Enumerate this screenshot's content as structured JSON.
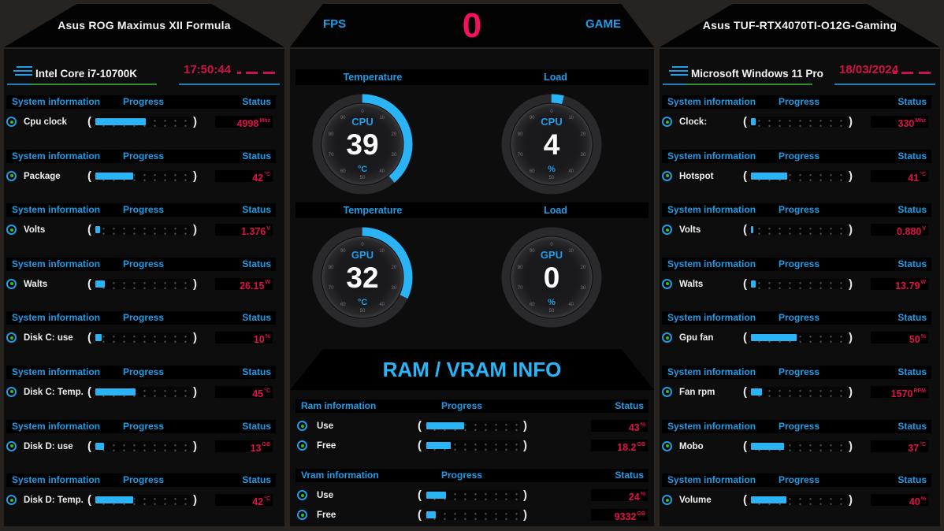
{
  "left_header": {
    "title": "Asus ROG Maximus XII Formula"
  },
  "middle_header": {
    "fps_label": "FPS",
    "fps_value": "0",
    "game_label": "GAME"
  },
  "right_header": {
    "title": "Asus TUF-RTX4070TI-O12G-Gaming"
  },
  "table_header": {
    "info": "System information",
    "progress": "Progress",
    "status": "Status"
  },
  "progress_parens": {
    "open": "(",
    "close": ")"
  },
  "left_panel": {
    "device_name": "Intel Core i7-10700K",
    "time": "17:50:44",
    "sections": [
      {
        "label": "Cpu clock",
        "pct": 55,
        "value": "4998",
        "unit": "Mhz"
      },
      {
        "label": "Package",
        "pct": 42,
        "value": "42",
        "unit": "°C"
      },
      {
        "label": "Volts",
        "pct": 8,
        "value": "1.376",
        "unit": "V"
      },
      {
        "label": "Walts",
        "pct": 13,
        "value": "26.15",
        "unit": "W"
      },
      {
        "label": "Disk C: use",
        "pct": 10,
        "value": "10",
        "unit": "%"
      },
      {
        "label": "Disk C: Temp.",
        "pct": 45,
        "value": "45",
        "unit": "°C"
      },
      {
        "label": "Disk D: use",
        "pct": 12,
        "value": "13",
        "unit": "GB"
      },
      {
        "label": "Disk D: Temp.",
        "pct": 42,
        "value": "42",
        "unit": "°C"
      }
    ]
  },
  "middle_panel": {
    "section_labels": {
      "temperature": "Temperature",
      "load": "Load"
    },
    "gauges": [
      {
        "label": "CPU",
        "value": "39",
        "unit": "°C",
        "percent": 39
      },
      {
        "label": "CPU",
        "value": "4",
        "unit": "%",
        "percent": 4
      },
      {
        "label": "GPU",
        "value": "32",
        "unit": "°C",
        "percent": 32
      },
      {
        "label": "GPU",
        "value": "0",
        "unit": "%",
        "percent": 0
      }
    ],
    "gauge_ticks": [
      "0",
      "10",
      "20",
      "30",
      "40",
      "50",
      "60",
      "70",
      "80",
      "90"
    ],
    "ram_vram_title": "RAM / VRAM INFO",
    "ram_table": {
      "header": {
        "info": "Ram information",
        "progress": "Progress",
        "status": "Status"
      },
      "rows": [
        {
          "label": "Use",
          "pct": 43,
          "value": "43",
          "unit": "%"
        },
        {
          "label": "Free",
          "pct": 29,
          "value": "18.2",
          "unit": "GB"
        }
      ]
    },
    "vram_table": {
      "header": {
        "info": "Vram information",
        "progress": "Progress",
        "status": "Status"
      },
      "rows": [
        {
          "label": "Use",
          "pct": 24,
          "value": "24",
          "unit": "%"
        },
        {
          "label": "Free",
          "pct": 13,
          "value": "9332",
          "unit": "GB"
        }
      ]
    }
  },
  "right_panel": {
    "device_name": "Microsoft Windows 11 Pro",
    "date": "18/03/2024",
    "sections": [
      {
        "label": "Clock:",
        "pct": 8,
        "value": "330",
        "unit": "Mhz"
      },
      {
        "label": "Hotspot",
        "pct": 41,
        "value": "41",
        "unit": "°C"
      },
      {
        "label": "Volts",
        "pct": 6,
        "value": "0.880",
        "unit": "V"
      },
      {
        "label": "Walts",
        "pct": 8,
        "value": "13.79",
        "unit": "W"
      },
      {
        "label": "Gpu fan",
        "pct": 50,
        "value": "50",
        "unit": "%"
      },
      {
        "label": "Fan rpm",
        "pct": 15,
        "value": "1570",
        "unit": "RPM"
      },
      {
        "label": "Mobo",
        "pct": 37,
        "value": "37",
        "unit": "°C"
      },
      {
        "label": "Volume",
        "pct": 40,
        "value": "40",
        "unit": "%"
      }
    ]
  },
  "colors": {
    "accent_blue": "#1e9ee8",
    "bar_blue": "#2ab4f5",
    "status_red": "#e01248",
    "fps_red": "#f5115d",
    "corner_green": "#0e9c0e"
  }
}
